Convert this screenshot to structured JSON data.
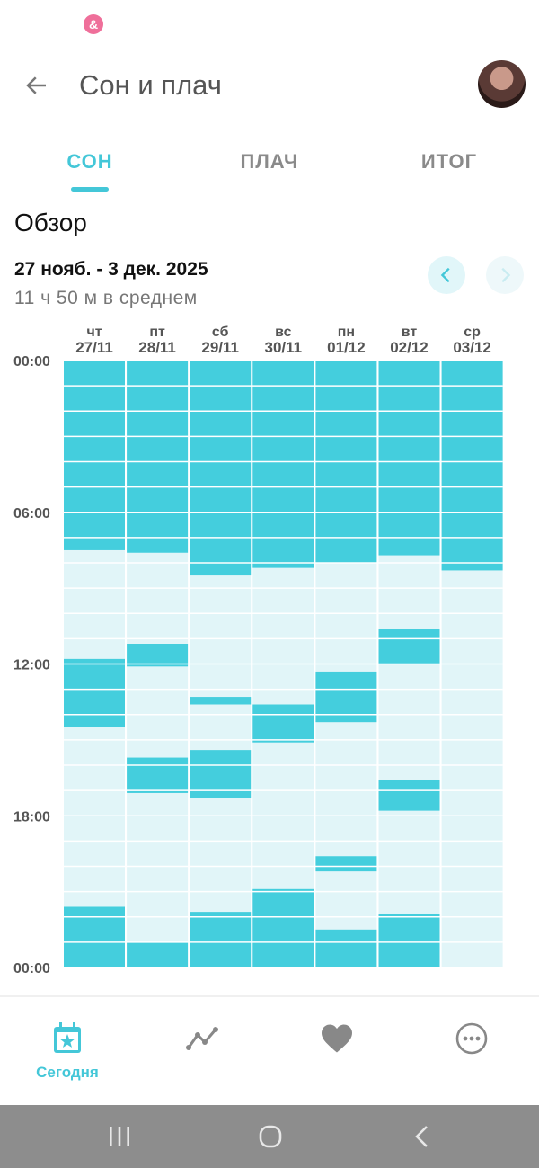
{
  "status": {
    "app_icon": "&"
  },
  "header": {
    "title": "Сон и плач",
    "back_icon": "arrow-left-icon"
  },
  "tabs": [
    {
      "label": "СОН",
      "active": true
    },
    {
      "label": "ПЛАЧ",
      "active": false
    },
    {
      "label": "ИТОГ",
      "active": false
    }
  ],
  "overview": {
    "title": "Обзор",
    "date_range": "27 нояб. - 3 дек. 2025",
    "average": "11 ч 50 м в среднем"
  },
  "colors": {
    "accent": "#44c7d8",
    "sleep": "#44ceddff",
    "awake": "#e1f5f8"
  },
  "chart_data": {
    "type": "heatmap",
    "y_tick_labels": [
      "00:00",
      "06:00",
      "12:00",
      "18:00",
      "00:00"
    ],
    "y_range_hours": [
      0,
      24
    ],
    "days": [
      {
        "dow": "чт",
        "date": "27/11",
        "sleep": [
          [
            0,
            7.5
          ],
          [
            11.8,
            14.5
          ],
          [
            21.6,
            24
          ]
        ]
      },
      {
        "dow": "пт",
        "date": "28/11",
        "sleep": [
          [
            0,
            7.6
          ],
          [
            11.2,
            12.1
          ],
          [
            15.7,
            17.1
          ],
          [
            23.0,
            24
          ]
        ]
      },
      {
        "dow": "сб",
        "date": "29/11",
        "sleep": [
          [
            0,
            8.5
          ],
          [
            13.3,
            13.6
          ],
          [
            15.4,
            17.3
          ],
          [
            21.8,
            24
          ]
        ]
      },
      {
        "dow": "вс",
        "date": "30/11",
        "sleep": [
          [
            0,
            8.2
          ],
          [
            13.6,
            15.1
          ],
          [
            20.9,
            24
          ]
        ]
      },
      {
        "dow": "пн",
        "date": "01/12",
        "sleep": [
          [
            0,
            8.0
          ],
          [
            12.3,
            14.3
          ],
          [
            19.6,
            20.2
          ],
          [
            22.5,
            24
          ]
        ]
      },
      {
        "dow": "вт",
        "date": "02/12",
        "sleep": [
          [
            0,
            7.7
          ],
          [
            10.6,
            12.0
          ],
          [
            16.6,
            17.8
          ],
          [
            21.9,
            24
          ]
        ]
      },
      {
        "dow": "ср",
        "date": "03/12",
        "sleep": [
          [
            0,
            8.3
          ]
        ]
      }
    ]
  },
  "bottom_nav": [
    {
      "label": "Сегодня",
      "icon": "calendar-star-icon",
      "active": true
    },
    {
      "label": "",
      "icon": "trend-line-icon",
      "active": false
    },
    {
      "label": "",
      "icon": "heart-icon",
      "active": false
    },
    {
      "label": "",
      "icon": "more-dots-icon",
      "active": false
    }
  ],
  "android_nav": {
    "recents_icon": "recents-icon",
    "home_icon": "home-icon",
    "back_icon": "system-back-icon"
  }
}
